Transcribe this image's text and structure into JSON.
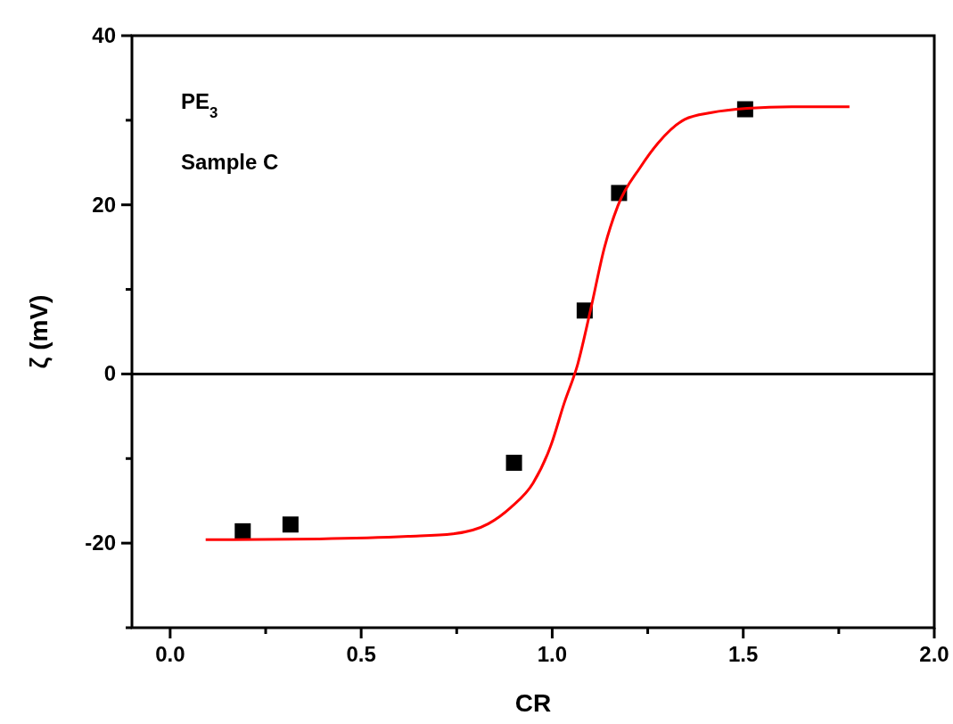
{
  "chart_data": {
    "type": "scatter",
    "xlabel": "CR",
    "ylabel": "ζ (mV)",
    "annotations": [
      "PE$_{3}$",
      "Sample C"
    ],
    "xlim": [
      -0.1,
      2.0
    ],
    "ylim": [
      -30,
      40
    ],
    "xticks": [
      {
        "value": 0,
        "label": "0.0"
      },
      {
        "value": 0.25,
        "label": null
      },
      {
        "value": 0.5,
        "label": "0.5"
      },
      {
        "value": 0.75,
        "label": null
      },
      {
        "value": 1,
        "label": "1.0"
      },
      {
        "value": 1.25,
        "label": null
      },
      {
        "value": 1.5,
        "label": "1.5"
      },
      {
        "value": 1.75,
        "label": null
      },
      {
        "value": 2,
        "label": "2.0"
      }
    ],
    "yticks": [
      {
        "value": -30,
        "label": null
      },
      -20,
      {
        "value": -10,
        "label": null
      },
      0,
      {
        "value": 10,
        "label": null
      },
      20,
      {
        "value": 30,
        "label": null
      },
      40
    ],
    "ref_lines": [
      {
        "axis": "y",
        "value": 0,
        "color": "#000000"
      }
    ],
    "series": [
      {
        "marker": "square",
        "color": "#000000",
        "x": [
          0.19,
          0.315,
          0.9,
          1.085,
          1.175,
          1.505
        ],
        "values": [
          -18.6,
          -17.8,
          -10.5,
          7.5,
          21.4,
          31.3
        ]
      },
      {
        "type": "line",
        "marker": "none",
        "line_style": "solid",
        "color": "#ff0000",
        "x": [
          0.093,
          0.39,
          0.623,
          0.74,
          0.833,
          0.891,
          0.95,
          0.997,
          1.031,
          1.067,
          1.1,
          1.137,
          1.172,
          1.23,
          1.277,
          1.347,
          1.417,
          1.51,
          1.627,
          1.778
        ],
        "values": [
          -19.6,
          -19.5,
          -19.2,
          -18.9,
          -17.7,
          -15.8,
          -12.9,
          -8.4,
          -3.5,
          1.2,
          7.5,
          15.0,
          19.9,
          24.4,
          27.3,
          30.1,
          30.9,
          31.4,
          31.6,
          31.6
        ]
      }
    ]
  }
}
